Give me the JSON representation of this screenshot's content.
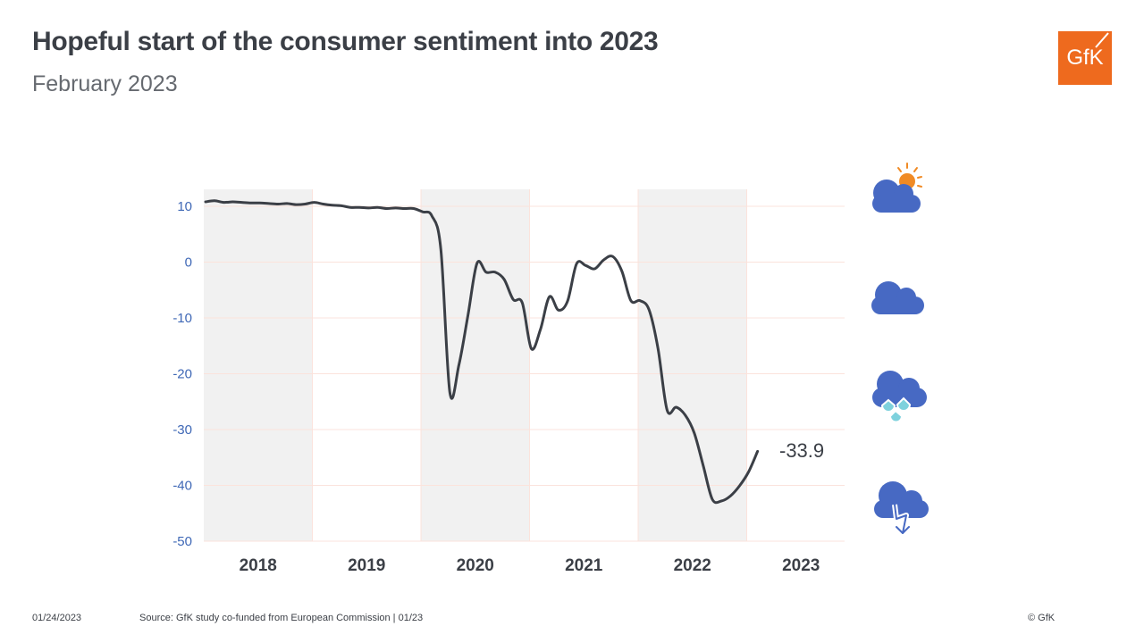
{
  "header": {
    "title": "Hopeful start of the consumer sentiment into 2023",
    "subtitle": "February 2023",
    "logo_text": "GfK"
  },
  "footer": {
    "date": "01/24/2023",
    "source": "Source: GfK study co-funded from European Commission | 01/23",
    "copyright": "© GfK"
  },
  "weather_icons": [
    {
      "name": "sun-cloud-icon"
    },
    {
      "name": "cloud-icon"
    },
    {
      "name": "rain-cloud-icon"
    },
    {
      "name": "storm-cloud-icon"
    }
  ],
  "colors": {
    "line": "#3b3f46",
    "shade": "#f1f1f1",
    "grid": "#fbe3dc",
    "tick": "#3f68b6",
    "cloud": "#4769c3",
    "sun": "#f08a24",
    "rain": "#7ed1dd",
    "brand": "#ee6a1e"
  },
  "chart_data": {
    "type": "line",
    "title": "Hopeful start of the consumer sentiment into 2023",
    "subtitle": "February 2023",
    "xlabel": "",
    "ylabel": "",
    "ylim": [
      -50,
      10
    ],
    "yticks": [
      10,
      0,
      -10,
      -20,
      -30,
      -40,
      -50
    ],
    "year_labels": [
      "2018",
      "2019",
      "2020",
      "2021",
      "2022",
      "2023"
    ],
    "shaded_years": [
      "2018",
      "2020",
      "2022"
    ],
    "grid": true,
    "last_value_label": "-33.9",
    "series": [
      {
        "x": [
          "2018-01",
          "2018-02",
          "2018-03",
          "2018-04",
          "2018-05",
          "2018-06",
          "2018-07",
          "2018-08",
          "2018-09",
          "2018-10",
          "2018-11",
          "2018-12",
          "2019-01",
          "2019-02",
          "2019-03",
          "2019-04",
          "2019-05",
          "2019-06",
          "2019-07",
          "2019-08",
          "2019-09",
          "2019-10",
          "2019-11",
          "2019-12",
          "2020-01",
          "2020-02",
          "2020-03",
          "2020-04",
          "2020-05",
          "2020-06",
          "2020-07",
          "2020-08",
          "2020-09",
          "2020-10",
          "2020-11",
          "2020-12",
          "2021-01",
          "2021-02",
          "2021-03",
          "2021-04",
          "2021-05",
          "2021-06",
          "2021-07",
          "2021-08",
          "2021-09",
          "2021-10",
          "2021-11",
          "2021-12",
          "2022-01",
          "2022-02",
          "2022-03",
          "2022-04",
          "2022-05",
          "2022-06",
          "2022-07",
          "2022-08",
          "2022-09",
          "2022-10",
          "2022-11",
          "2022-12",
          "2023-01",
          "2023-02"
        ],
        "values": [
          10.8,
          11.0,
          10.7,
          10.8,
          10.7,
          10.6,
          10.6,
          10.5,
          10.4,
          10.5,
          10.3,
          10.4,
          10.7,
          10.4,
          10.2,
          10.1,
          9.8,
          9.8,
          9.7,
          9.8,
          9.6,
          9.7,
          9.6,
          9.6,
          9.0,
          8.3,
          2.3,
          -23.4,
          -18.4,
          -9.5,
          -0.2,
          -1.8,
          -1.8,
          -3.1,
          -6.7,
          -7.3,
          -15.5,
          -12.1,
          -6.2,
          -8.6,
          -7.0,
          -0.3,
          -0.6,
          -1.2,
          0.4,
          1.0,
          -1.6,
          -6.9,
          -6.9,
          -8.5,
          -15.5,
          -26.5,
          -26.0,
          -27.4,
          -30.6,
          -36.5,
          -42.5,
          -42.8,
          -41.9,
          -40.1,
          -37.6,
          -33.9
        ]
      }
    ]
  }
}
